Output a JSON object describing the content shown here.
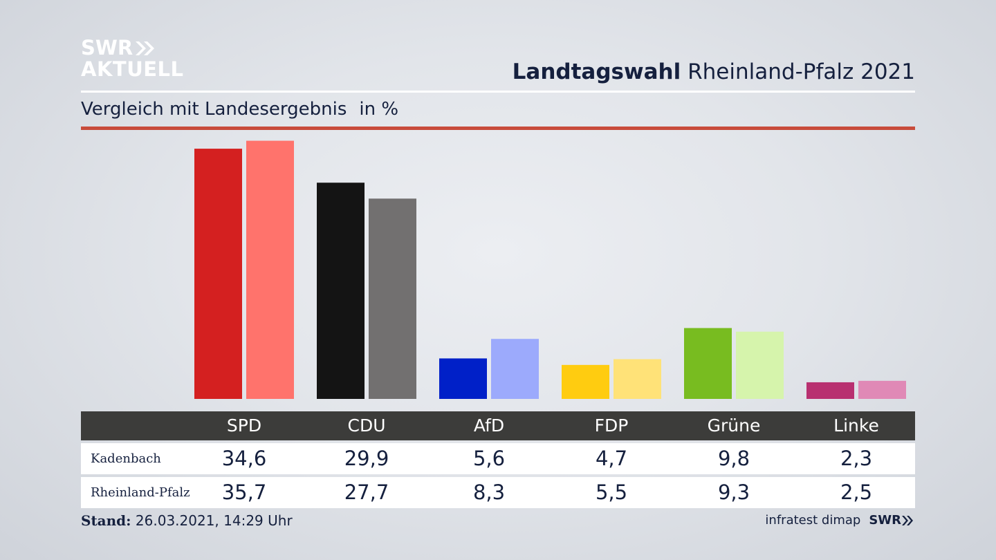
{
  "brand": {
    "line1": "SWR",
    "line2": "AKTUELL"
  },
  "header": {
    "title_bold": "Landtagswahl",
    "title_rest": "Rheinland-Pfalz 2021"
  },
  "subtitle": {
    "text": "Vergleich mit Landesergebnis",
    "unit": "in %"
  },
  "chart_data": {
    "type": "bar",
    "title": "Landtagswahl Rheinland-Pfalz 2021",
    "subtitle": "Vergleich mit Landesergebnis in %",
    "categories": [
      "SPD",
      "CDU",
      "AfD",
      "FDP",
      "Grüne",
      "Linke"
    ],
    "series": [
      {
        "name": "Kadenbach",
        "values": [
          34.6,
          29.9,
          5.6,
          4.7,
          9.8,
          2.3
        ],
        "colors": [
          "#d42020",
          "#141414",
          "#0020c8",
          "#ffcc10",
          "#78bc20",
          "#b83070"
        ]
      },
      {
        "name": "Rheinland-Pfalz",
        "values": [
          35.7,
          27.7,
          8.3,
          5.5,
          9.3,
          2.5
        ],
        "colors": [
          "#ff736c",
          "#727070",
          "#9caafc",
          "#ffe278",
          "#d6f4ac",
          "#e089b6"
        ]
      }
    ],
    "ylim": [
      0,
      36
    ]
  },
  "table": {
    "headers": [
      "SPD",
      "CDU",
      "AfD",
      "FDP",
      "Grüne",
      "Linke"
    ],
    "rows": [
      {
        "label": "Kadenbach",
        "values": [
          "34,6",
          "29,9",
          "5,6",
          "4,7",
          "9,8",
          "2,3"
        ]
      },
      {
        "label": "Rheinland-Pfalz",
        "values": [
          "35,7",
          "27,7",
          "8,3",
          "5,5",
          "9,3",
          "2,5"
        ]
      }
    ]
  },
  "footer": {
    "stand_label": "Stand:",
    "stand_value": "26.03.2021, 14:29 Uhr",
    "source": "infratest dimap",
    "brand": "SWR"
  }
}
